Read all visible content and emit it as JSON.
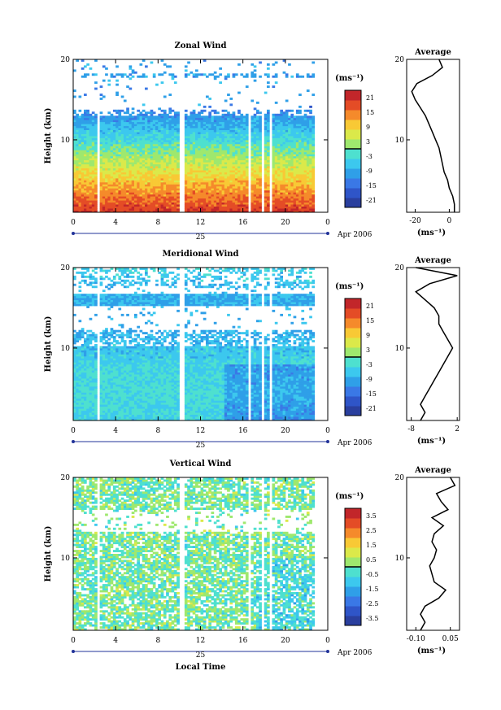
{
  "figure": {
    "footer_label": "Local Time",
    "date_label": "Apr 2006",
    "day_label": "25"
  },
  "chart_data": [
    {
      "type": "heatmap",
      "title": "Zonal Wind",
      "ylabel": "Height (km)",
      "xlabel": "Local Time",
      "x_ticks": [
        "0",
        "4",
        "8",
        "12",
        "16",
        "20",
        "0"
      ],
      "x_range": [
        0,
        24
      ],
      "y_ticks": [
        "10",
        "20"
      ],
      "y_range": [
        1,
        20
      ],
      "colorbar": {
        "unit": "(ms⁻¹)",
        "ticks": [
          "21",
          "15",
          "9",
          "3",
          "-3",
          "-9",
          "-15",
          "-21"
        ],
        "range": [
          -24,
          24
        ]
      },
      "profile": {
        "title": "Average",
        "xlabel": "(ms⁻¹)",
        "x_ticks": [
          "-20",
          "0"
        ],
        "x_range": [
          -25,
          6
        ],
        "y_ticks": [
          "10",
          "20"
        ],
        "points": [
          [
            3,
            1
          ],
          [
            3,
            2
          ],
          [
            2,
            3
          ],
          [
            0,
            4
          ],
          [
            -1,
            5
          ],
          [
            -3,
            6
          ],
          [
            -4,
            7
          ],
          [
            -5,
            8
          ],
          [
            -6,
            9
          ],
          [
            -8,
            10
          ],
          [
            -10,
            11
          ],
          [
            -12,
            12
          ],
          [
            -14,
            13
          ],
          [
            -17,
            14
          ],
          [
            -20,
            15
          ],
          [
            -22,
            16
          ],
          [
            -19,
            17
          ],
          [
            -10,
            18
          ],
          [
            -4,
            19
          ],
          [
            -6,
            20
          ]
        ]
      }
    },
    {
      "type": "heatmap",
      "title": "Meridional Wind",
      "ylabel": "Height (km)",
      "xlabel": "Local Time",
      "x_ticks": [
        "0",
        "4",
        "8",
        "12",
        "16",
        "20",
        "0"
      ],
      "x_range": [
        0,
        24
      ],
      "y_ticks": [
        "10",
        "20"
      ],
      "y_range": [
        1,
        20
      ],
      "colorbar": {
        "unit": "(ms⁻¹)",
        "ticks": [
          "21",
          "15",
          "9",
          "3",
          "-3",
          "-9",
          "-15",
          "-21"
        ],
        "range": [
          -24,
          24
        ]
      },
      "profile": {
        "title": "Average",
        "xlabel": "(ms⁻¹)",
        "x_ticks": [
          "-8",
          "2"
        ],
        "x_range": [
          -9,
          2.5
        ],
        "y_ticks": [
          "10",
          "20"
        ],
        "points": [
          [
            -6,
            1
          ],
          [
            -5,
            2
          ],
          [
            -6,
            3
          ],
          [
            -5,
            4
          ],
          [
            -4,
            5
          ],
          [
            -3,
            6
          ],
          [
            -2,
            7
          ],
          [
            -1,
            8
          ],
          [
            0,
            9
          ],
          [
            1,
            10
          ],
          [
            0,
            11
          ],
          [
            -1,
            12
          ],
          [
            -2,
            13
          ],
          [
            -2,
            14
          ],
          [
            -3,
            15
          ],
          [
            -5,
            16
          ],
          [
            -7,
            17
          ],
          [
            -4,
            18
          ],
          [
            2,
            19
          ],
          [
            -7,
            20
          ]
        ]
      }
    },
    {
      "type": "heatmap",
      "title": "Vertical Wind",
      "ylabel": "Height (km)",
      "xlabel": "Local Time",
      "x_ticks": [
        "0",
        "4",
        "8",
        "12",
        "16",
        "20",
        "0"
      ],
      "x_range": [
        0,
        24
      ],
      "y_ticks": [
        "10",
        "20"
      ],
      "y_range": [
        1,
        20
      ],
      "colorbar": {
        "unit": "(ms⁻¹)",
        "ticks": [
          "3.5",
          "2.5",
          "1.5",
          "0.5",
          "-0.5",
          "-1.5",
          "-2.5",
          "-3.5"
        ],
        "range": [
          -4,
          4
        ]
      },
      "profile": {
        "title": "Average",
        "xlabel": "(ms⁻¹)",
        "x_ticks": [
          "-0.10",
          "0.05"
        ],
        "x_range": [
          -0.14,
          0.09
        ],
        "y_ticks": [
          "10",
          "20"
        ],
        "points": [
          [
            -0.08,
            1
          ],
          [
            -0.06,
            2
          ],
          [
            -0.08,
            3
          ],
          [
            -0.06,
            4
          ],
          [
            0.0,
            5
          ],
          [
            0.03,
            6
          ],
          [
            -0.02,
            7
          ],
          [
            -0.03,
            8
          ],
          [
            -0.04,
            9
          ],
          [
            -0.02,
            10
          ],
          [
            -0.01,
            11
          ],
          [
            -0.03,
            12
          ],
          [
            -0.02,
            13
          ],
          [
            0.02,
            14
          ],
          [
            -0.03,
            15
          ],
          [
            0.04,
            16
          ],
          [
            0.01,
            17
          ],
          [
            -0.01,
            18
          ],
          [
            0.07,
            19
          ],
          [
            0.05,
            20
          ]
        ]
      }
    }
  ]
}
